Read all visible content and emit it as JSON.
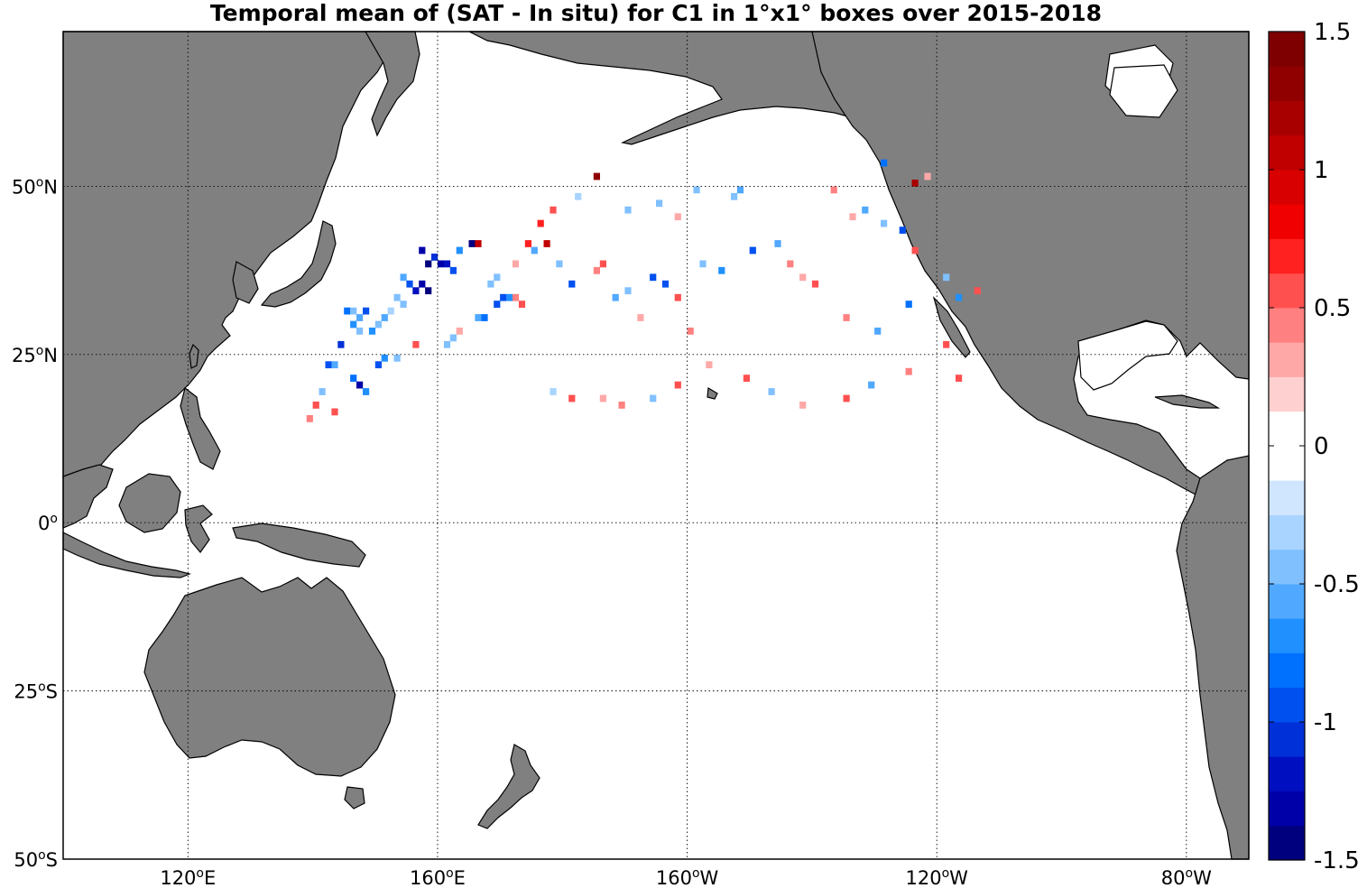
{
  "title": "Temporal mean of (SAT - In situ) for C1 in 1°x1° boxes over 2015-2018",
  "map": {
    "projection": "equirectangular",
    "lon_range": [
      100,
      290
    ],
    "lat_range": [
      -50,
      73
    ],
    "land_color": "#808080",
    "ocean_color": "#ffffff",
    "grid": "dotted",
    "lat_ticks": [
      {
        "lat": 50,
        "base": "50",
        "deg": "o",
        "hemi": "N"
      },
      {
        "lat": 25,
        "base": "25",
        "deg": "o",
        "hemi": "N"
      },
      {
        "lat": 0,
        "base": "0",
        "deg": "o",
        "hemi": ""
      },
      {
        "lat": -25,
        "base": "25",
        "deg": "o",
        "hemi": "S"
      },
      {
        "lat": -50,
        "base": "50",
        "deg": "o",
        "hemi": "S"
      }
    ],
    "lon_ticks": [
      {
        "lon": 120,
        "base": "120",
        "deg": "o",
        "hemi": "E"
      },
      {
        "lon": 160,
        "base": "160",
        "deg": "o",
        "hemi": "E"
      },
      {
        "lon": 200,
        "base": "160",
        "deg": "o",
        "hemi": "W"
      },
      {
        "lon": 240,
        "base": "120",
        "deg": "o",
        "hemi": "W"
      },
      {
        "lon": 280,
        "base": "80",
        "deg": "o",
        "hemi": "W"
      }
    ]
  },
  "colorbar": {
    "min": -1.5,
    "max": 1.5,
    "ticks": [
      "1.5",
      "1",
      "0.5",
      "0",
      "-0.5",
      "-1",
      "-1.5"
    ],
    "tick_values": [
      1.5,
      1,
      0.5,
      0,
      -0.5,
      -1,
      -1.5
    ],
    "colors": [
      "#00007f",
      "#0000a8",
      "#0010c0",
      "#0030d8",
      "#0050f0",
      "#0070ff",
      "#2090ff",
      "#50a8ff",
      "#80c0ff",
      "#a8d4ff",
      "#d0e6ff",
      "#ffffff",
      "#ffffff",
      "#ffd0d0",
      "#ffa8a8",
      "#ff8080",
      "#ff5050",
      "#ff2020",
      "#f00000",
      "#d80000",
      "#c00000",
      "#a80000",
      "#900000",
      "#7f0000"
    ]
  },
  "chart_data": {
    "type": "heatmap",
    "title": "Temporal mean of (SAT - In situ) for C1 in 1°x1° boxes over 2015-2018",
    "xlabel": "",
    "ylabel": "",
    "x_range_deg_east": [
      100,
      290
    ],
    "y_range_deg_north": [
      -50,
      73
    ],
    "value_range": [
      -1.5,
      1.5
    ],
    "cell_size_deg": 1,
    "cells": [
      [
        160,
        38,
        -1.3
      ],
      [
        161,
        38,
        -1.2
      ],
      [
        162,
        37,
        -0.9
      ],
      [
        158,
        38,
        -1.4
      ],
      [
        159,
        39,
        -1.1
      ],
      [
        157,
        40,
        -1.3
      ],
      [
        163,
        40,
        -0.7
      ],
      [
        165,
        41,
        -1.4
      ],
      [
        166,
        41,
        1.1
      ],
      [
        154,
        36,
        -0.6
      ],
      [
        155,
        35,
        -0.9
      ],
      [
        156,
        34,
        -1.2
      ],
      [
        157,
        35,
        -1.3
      ],
      [
        158,
        34,
        -1.4
      ],
      [
        153,
        33,
        -0.4
      ],
      [
        154,
        32,
        -0.5
      ],
      [
        152,
        31,
        -0.3
      ],
      [
        151,
        30,
        -0.6
      ],
      [
        150,
        29,
        -0.4
      ],
      [
        149,
        28,
        -0.7
      ],
      [
        145,
        31,
        -0.8
      ],
      [
        146,
        31,
        -0.5
      ],
      [
        147,
        30,
        -0.6
      ],
      [
        148,
        31,
        -0.9
      ],
      [
        146,
        29,
        -0.7
      ],
      [
        147,
        28,
        -0.5
      ],
      [
        144,
        26,
        -1.1
      ],
      [
        142,
        23,
        -0.9
      ],
      [
        143,
        23,
        -0.6
      ],
      [
        146,
        21,
        -0.8
      ],
      [
        147,
        20,
        -1.3
      ],
      [
        148,
        19,
        -0.7
      ],
      [
        141,
        19,
        -0.4
      ],
      [
        140,
        17,
        0.6
      ],
      [
        143,
        16,
        0.5
      ],
      [
        139,
        15,
        0.4
      ],
      [
        150,
        23,
        -0.9
      ],
      [
        151,
        24,
        -0.7
      ],
      [
        153,
        24,
        -0.5
      ],
      [
        156,
        26,
        0.6
      ],
      [
        161,
        26,
        -0.5
      ],
      [
        162,
        27,
        -0.4
      ],
      [
        163,
        28,
        0.3
      ],
      [
        166,
        30,
        -0.6
      ],
      [
        167,
        30,
        -0.8
      ],
      [
        169,
        32,
        -0.9
      ],
      [
        170,
        33,
        -1.0
      ],
      [
        171,
        33,
        -0.7
      ],
      [
        172,
        33,
        0.4
      ],
      [
        173,
        32,
        0.5
      ],
      [
        168,
        35,
        -0.4
      ],
      [
        169,
        36,
        -0.5
      ],
      [
        172,
        38,
        0.3
      ],
      [
        174,
        41,
        0.7
      ],
      [
        175,
        40,
        -0.6
      ],
      [
        177,
        41,
        1.0
      ],
      [
        179,
        38,
        -0.4
      ],
      [
        181,
        35,
        -0.9
      ],
      [
        185,
        37,
        0.4
      ],
      [
        186,
        38,
        0.6
      ],
      [
        188,
        33,
        -0.6
      ],
      [
        190,
        34,
        -0.5
      ],
      [
        192,
        30,
        0.3
      ],
      [
        194,
        36,
        -0.9
      ],
      [
        196,
        35,
        -1.0
      ],
      [
        198,
        33,
        0.5
      ],
      [
        200,
        28,
        0.4
      ],
      [
        202,
        38,
        -0.5
      ],
      [
        205,
        37,
        -0.7
      ],
      [
        210,
        40,
        -1.0
      ],
      [
        214,
        41,
        -0.6
      ],
      [
        216,
        38,
        0.4
      ],
      [
        218,
        36,
        0.3
      ],
      [
        220,
        35,
        0.5
      ],
      [
        225,
        30,
        0.4
      ],
      [
        230,
        28,
        -0.6
      ],
      [
        235,
        32,
        -0.8
      ],
      [
        241,
        36,
        -0.5
      ],
      [
        243,
        33,
        -0.7
      ],
      [
        246,
        34,
        0.6
      ],
      [
        231,
        44,
        -0.5
      ],
      [
        234,
        43,
        -0.9
      ],
      [
        236,
        40,
        0.6
      ],
      [
        236,
        50,
        1.2
      ],
      [
        238,
        51,
        0.3
      ],
      [
        231,
        53,
        -0.8
      ],
      [
        207,
        48,
        -0.4
      ],
      [
        208,
        49,
        -0.6
      ],
      [
        182,
        48,
        -0.3
      ],
      [
        185,
        51,
        1.3
      ],
      [
        178,
        46,
        0.5
      ],
      [
        176,
        44,
        0.7
      ],
      [
        190,
        46,
        -0.5
      ],
      [
        195,
        47,
        -0.4
      ],
      [
        198,
        45,
        0.3
      ],
      [
        201,
        49,
        -0.4
      ],
      [
        223,
        49,
        0.4
      ],
      [
        226,
        45,
        0.3
      ],
      [
        228,
        46,
        -0.6
      ],
      [
        243,
        21,
        0.5
      ],
      [
        241,
        26,
        0.6
      ],
      [
        235,
        22,
        0.4
      ],
      [
        229,
        20,
        -0.6
      ],
      [
        225,
        18,
        0.5
      ],
      [
        218,
        17,
        0.3
      ],
      [
        213,
        19,
        -0.4
      ],
      [
        209,
        21,
        0.6
      ],
      [
        203,
        23,
        0.3
      ],
      [
        198,
        20,
        0.5
      ],
      [
        194,
        18,
        -0.5
      ],
      [
        189,
        17,
        0.4
      ],
      [
        186,
        18,
        0.3
      ],
      [
        181,
        18,
        0.5
      ],
      [
        178,
        19,
        -0.3
      ]
    ]
  }
}
